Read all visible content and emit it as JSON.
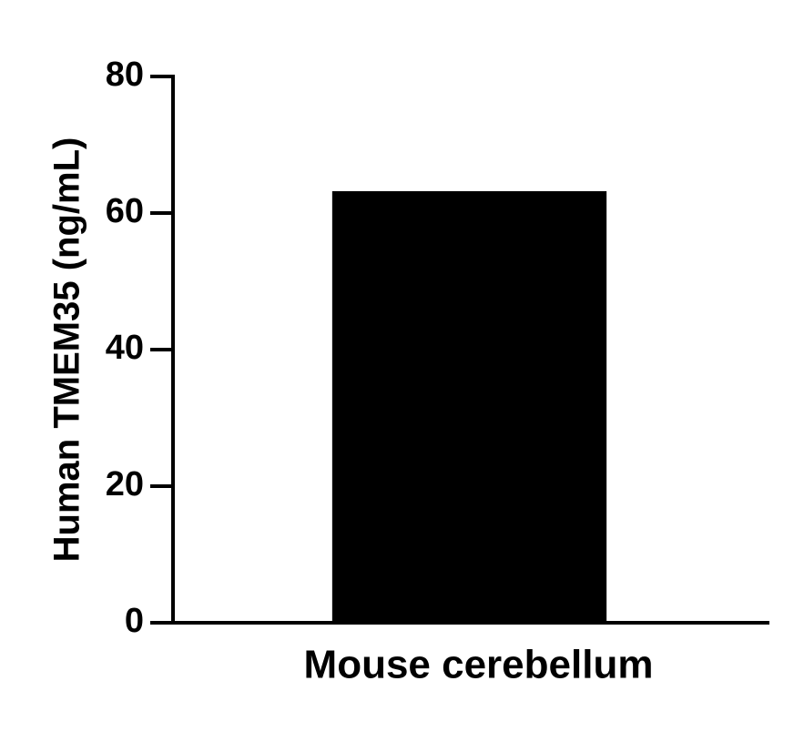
{
  "chart_data": {
    "type": "bar",
    "ylabel": "Human TMEM35 (ng/mL)",
    "categories": [
      "Mouse cerebellum"
    ],
    "values": [
      63.2
    ],
    "color": "#000000",
    "ylim": [
      0,
      80
    ],
    "yticks": [
      0,
      20,
      40,
      60,
      80
    ]
  }
}
